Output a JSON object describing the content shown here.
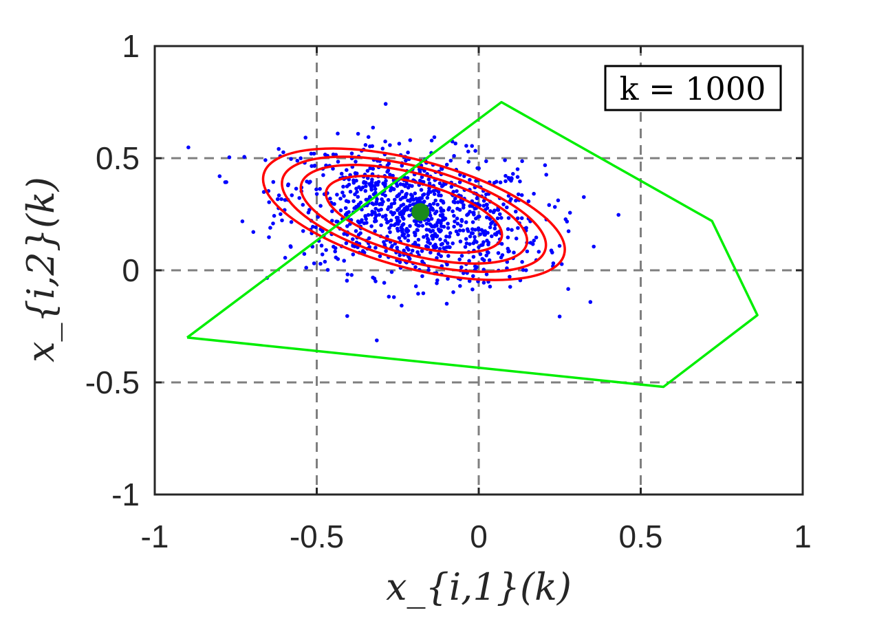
{
  "chart_data": {
    "type": "scatter",
    "title": "",
    "xlabel": "x_{i,1}(k)",
    "ylabel": "x_{i,2}(k)",
    "xlim": [
      -1,
      1
    ],
    "ylim": [
      -1,
      1
    ],
    "xticks": [
      -1,
      -0.5,
      0,
      0.5,
      1
    ],
    "yticks": [
      -1,
      -0.5,
      0,
      0.5,
      1
    ],
    "xtick_labels": [
      "-1",
      "-0.5",
      "0",
      "0.5",
      "1"
    ],
    "ytick_labels": [
      "-1",
      "-0.5",
      "0",
      "0.5",
      "1"
    ],
    "grid": true,
    "grid_style": "dashed",
    "annotation": "k = 1000",
    "annotation_placement": "top-right",
    "series": [
      {
        "kind": "scatter",
        "color": "#0000ff",
        "n_points": 1000,
        "distribution": "gaussian",
        "mean": [
          -0.2,
          0.25
        ],
        "std": [
          0.2,
          0.15
        ],
        "correlation": -0.25
      },
      {
        "kind": "contours",
        "color": "#ff0000",
        "center": [
          -0.2,
          0.25
        ],
        "ellipses": [
          {
            "semi_axis_x": 0.28,
            "semi_axis_y": 0.14
          },
          {
            "semi_axis_x": 0.36,
            "semi_axis_y": 0.18
          },
          {
            "semi_axis_x": 0.42,
            "semi_axis_y": 0.21
          },
          {
            "semi_axis_x": 0.48,
            "semi_axis_y": 0.24
          }
        ],
        "rotation_deg": -15
      },
      {
        "kind": "polygon",
        "color": "#00ee00",
        "points": [
          [
            -0.9,
            -0.3
          ],
          [
            0.07,
            0.75
          ],
          [
            0.72,
            0.22
          ],
          [
            0.86,
            -0.2
          ],
          [
            0.57,
            -0.52
          ],
          [
            -0.9,
            -0.3
          ]
        ]
      },
      {
        "kind": "marker",
        "color": "#1a8a1a",
        "point": [
          -0.18,
          0.26
        ]
      }
    ]
  }
}
